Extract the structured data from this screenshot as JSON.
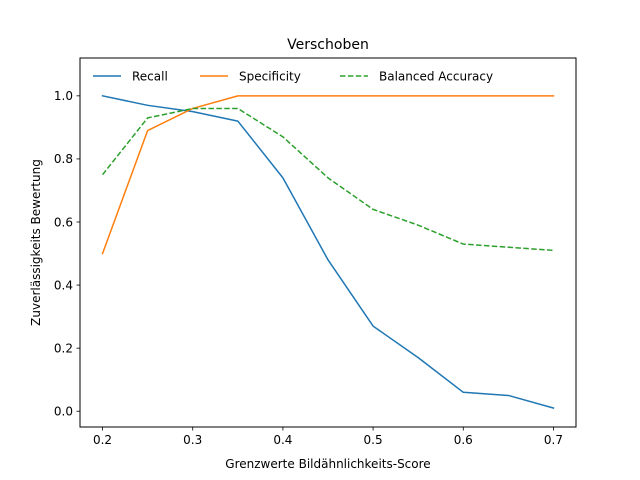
{
  "chart_data": {
    "type": "line",
    "title": "Verschoben",
    "xlabel": "Grenzwerte Bildähnlichkeits-Score",
    "ylabel": "Zuverlässigkeits Bewertung",
    "xlim": [
      0.175,
      0.725
    ],
    "ylim": [
      -0.05,
      1.12
    ],
    "xticks": [
      0.2,
      0.3,
      0.4,
      0.5,
      0.6,
      0.7
    ],
    "xtick_labels": [
      "0.2",
      "0.3",
      "0.4",
      "0.5",
      "0.6",
      "0.7"
    ],
    "yticks": [
      0.0,
      0.2,
      0.4,
      0.6,
      0.8,
      1.0
    ],
    "ytick_labels": [
      "0.0",
      "0.2",
      "0.4",
      "0.6",
      "0.8",
      "1.0"
    ],
    "grid": false,
    "legend_position": "top",
    "x": [
      0.2,
      0.25,
      0.3,
      0.35,
      0.4,
      0.45,
      0.5,
      0.55,
      0.6,
      0.65,
      0.7
    ],
    "series": [
      {
        "name": "Recall",
        "color": "#1f77b4",
        "style": "solid",
        "values": [
          1.0,
          0.97,
          0.95,
          0.92,
          0.74,
          0.48,
          0.27,
          0.17,
          0.06,
          0.05,
          0.01
        ]
      },
      {
        "name": "Specificity",
        "color": "#ff7f0e",
        "style": "solid",
        "values": [
          0.5,
          0.89,
          0.96,
          1.0,
          1.0,
          1.0,
          1.0,
          1.0,
          1.0,
          1.0,
          1.0
        ]
      },
      {
        "name": "Balanced Accuracy",
        "color": "#2ca02c",
        "style": "dashed",
        "values": [
          0.75,
          0.93,
          0.96,
          0.96,
          0.87,
          0.74,
          0.64,
          0.59,
          0.53,
          0.52,
          0.51
        ]
      }
    ]
  }
}
